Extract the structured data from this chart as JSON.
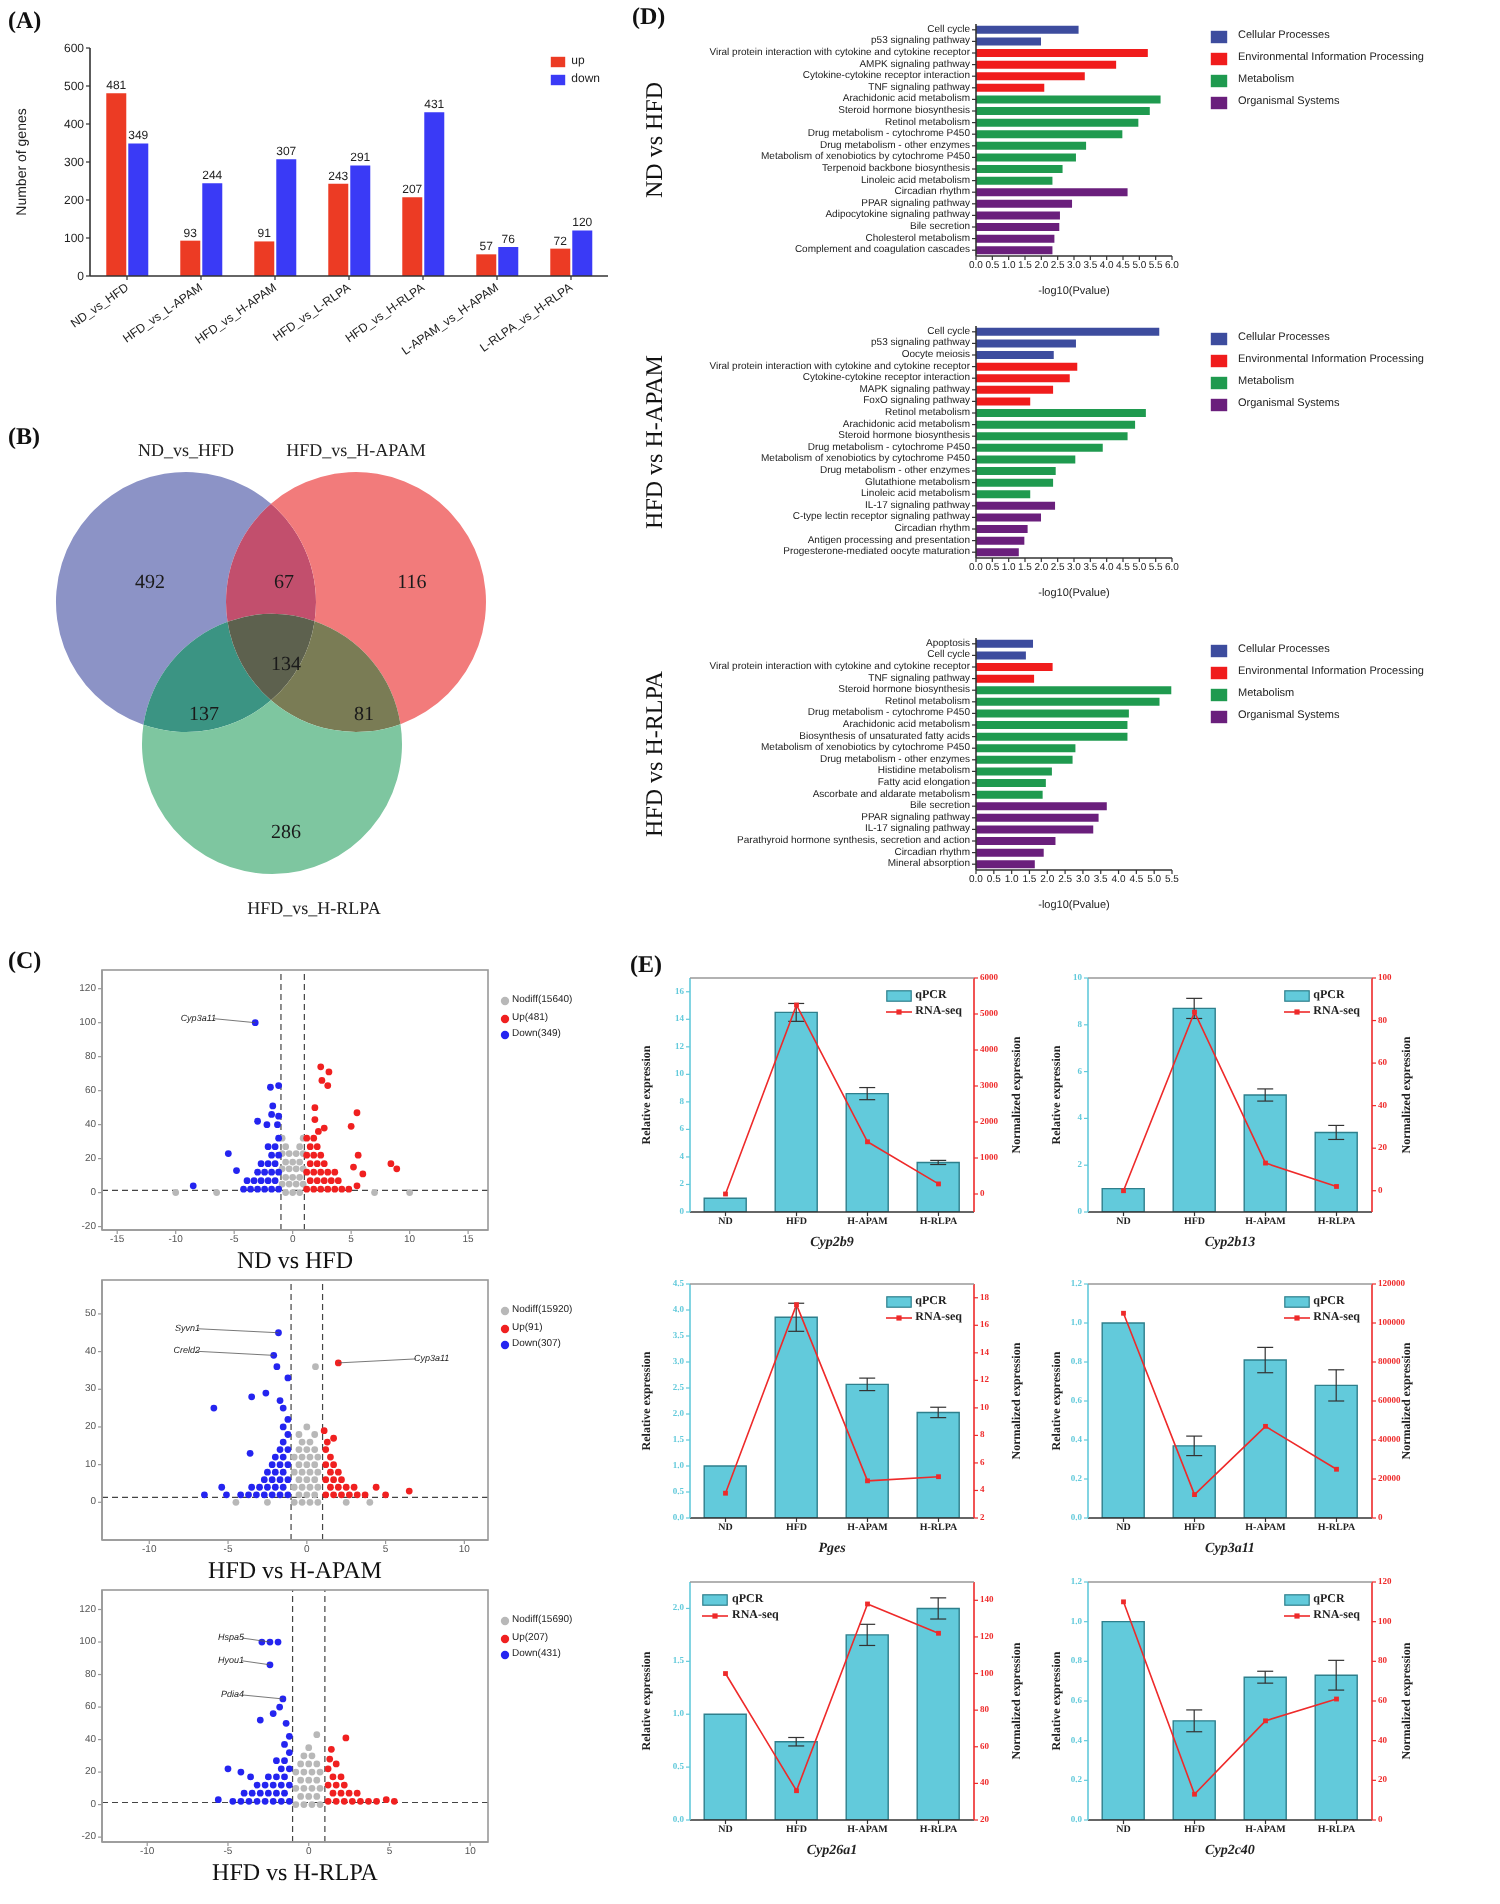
{
  "chart_data": [
    {
      "type": "bar",
      "annotations": [
        "(A)"
      ],
      "ylabel": "Number of genes",
      "categories": [
        "ND_vs_HFD",
        "HFD_vs_L-APAM",
        "HFD_vs_H-APAM",
        "HFD_vs_L-RLPA",
        "HFD_vs_H-RLPA",
        "L-APAM_vs_H-APAM",
        "L-RLPA_vs_H-RLPA"
      ],
      "series": [
        {
          "name": "up",
          "color": "#ec3b24",
          "values": [
            481,
            93,
            91,
            243,
            207,
            57,
            72
          ]
        },
        {
          "name": "down",
          "color": "#3a3af6",
          "values": [
            349,
            244,
            307,
            291,
            431,
            76,
            120
          ]
        }
      ],
      "ylim": [
        0,
        600
      ],
      "yticks": [
        0,
        100,
        200,
        300,
        400,
        500,
        600
      ],
      "data_labels": true,
      "legend": "top right"
    },
    {
      "type": "other",
      "annotations": [
        "(B)",
        "ND_vs_HFD",
        "HFD_vs_H-APAM",
        "HFD_vs_H-RLPA",
        "492",
        "67",
        "116",
        "137",
        "134",
        "81",
        "286"
      ]
    },
    {
      "type": "scatter",
      "annotations": [
        "(C)",
        {
          "text": "Cyp3a11",
          "x": -3.2,
          "y": 100
        }
      ],
      "title": "ND vs HFD",
      "marker": "circle",
      "legend": "right",
      "xlim": [
        -16.3,
        16.7
      ],
      "xticks": [
        -15,
        -10,
        -5,
        0,
        5,
        10,
        15
      ],
      "ylim": [
        -22,
        131
      ],
      "yticks": [
        -20,
        0,
        20,
        40,
        60,
        80,
        100,
        120
      ],
      "ref_lines": [
        {
          "axis": "x",
          "value": -1,
          "line_style": "dashed"
        },
        {
          "axis": "x",
          "value": 1,
          "line_style": "dashed"
        },
        {
          "axis": "y",
          "value": 1.3,
          "line_style": "dashed"
        }
      ],
      "series": [
        {
          "name": "Nodiff(15640)",
          "color": "#b8b8b8",
          "x": [
            -0.6,
            0,
            0.6,
            -0.9,
            -0.3,
            0.3,
            0.9,
            -0.6,
            0,
            0.6,
            -0.9,
            -0.3,
            0.3,
            0.9,
            -0.6,
            0,
            0.6,
            -0.9,
            -0.3,
            0.3,
            0.9,
            -0.6,
            0.6,
            -0.9,
            0.9,
            -6.5,
            7.0,
            -10,
            10
          ],
          "values": [
            0,
            0,
            0,
            5,
            5,
            5,
            5,
            9,
            9,
            9,
            14,
            14,
            14,
            14,
            18,
            18,
            18,
            23,
            23,
            23,
            23,
            27,
            27,
            32,
            32,
            0,
            0,
            0,
            0
          ]
        },
        {
          "name": "Up(481)",
          "color": "#f02020",
          "x": [
            1.2,
            1.8,
            2.4,
            3.0,
            3.6,
            4.2,
            4.8,
            1.5,
            2.1,
            2.7,
            3.3,
            3.9,
            1.2,
            1.8,
            2.4,
            3.0,
            3.6,
            1.5,
            2.1,
            2.7,
            1.2,
            1.8,
            2.4,
            1.5,
            2.1,
            1.2,
            1.8,
            8.4,
            8.9,
            5.6,
            6.0,
            5.2,
            5.5,
            2.4,
            3.1,
            2.5,
            3.0,
            1.9,
            1.9,
            5.5,
            5.0,
            2.7,
            2.2
          ],
          "values": [
            2,
            2,
            2,
            2,
            2,
            2,
            2,
            7,
            7,
            7,
            7,
            7,
            12,
            12,
            12,
            12,
            12,
            17,
            17,
            17,
            22,
            22,
            22,
            27,
            27,
            32,
            32,
            17,
            14,
            22,
            11,
            15,
            4,
            74,
            71,
            66,
            63,
            50,
            43,
            47,
            39,
            38,
            36
          ]
        },
        {
          "name": "Down(349)",
          "color": "#2424f0",
          "x": [
            -1.2,
            -1.8,
            -2.4,
            -3.0,
            -3.6,
            -4.2,
            -1.5,
            -2.1,
            -2.7,
            -3.3,
            -3.9,
            -1.2,
            -1.8,
            -2.4,
            -3.0,
            -1.5,
            -2.1,
            -2.7,
            -1.2,
            -1.8,
            -1.5,
            -2.1,
            -1.2,
            -8.5,
            -5.5,
            -4.8,
            -3.2,
            -1.9,
            -1.2,
            -1.7,
            -1.8,
            -1.2,
            -3.0,
            -1.3,
            -2.2
          ],
          "values": [
            2,
            2,
            2,
            2,
            2,
            2,
            7,
            7,
            7,
            7,
            7,
            12,
            12,
            12,
            12,
            17,
            17,
            17,
            22,
            22,
            27,
            27,
            32,
            4,
            23,
            13,
            100,
            62,
            63,
            51,
            46,
            45,
            42,
            40,
            40
          ]
        }
      ]
    },
    {
      "type": "scatter",
      "annotations": [
        {
          "text": "Syvn1",
          "x": -1.8,
          "y": 45
        },
        {
          "text": "Creld2",
          "x": -2.1,
          "y": 39
        },
        {
          "text": "Cyp3a11",
          "x": 2.0,
          "y": 37
        }
      ],
      "title": "HFD vs H-APAM",
      "marker": "circle",
      "legend": "right",
      "xlim": [
        -13,
        11.5
      ],
      "xticks": [
        -10,
        -5,
        0,
        5,
        10
      ],
      "ylim": [
        -10,
        59
      ],
      "yticks": [
        0,
        10,
        20,
        30,
        40,
        50
      ],
      "ref_lines": [
        {
          "axis": "x",
          "value": -1,
          "line_style": "dashed"
        },
        {
          "axis": "x",
          "value": 1,
          "line_style": "dashed"
        },
        {
          "axis": "y",
          "value": 1.3,
          "line_style": "dashed"
        }
      ],
      "series": [
        {
          "name": "Nodiff(15920)",
          "color": "#b8b8b8",
          "x": [
            -0.8,
            -0.3,
            0.2,
            0.7,
            -0.5,
            0,
            0.5,
            -0.8,
            -0.3,
            0.2,
            0.7,
            -0.5,
            0,
            0.5,
            -0.8,
            -0.3,
            0.2,
            0.7,
            -0.5,
            0,
            0.5,
            -0.8,
            -0.3,
            0.2,
            0.7,
            -0.5,
            0,
            0.5,
            -0.3,
            0.2,
            -0.5,
            0.5,
            0,
            0.55,
            -2.5,
            2.5,
            -4.5,
            4.0
          ],
          "values": [
            0,
            0,
            0,
            0,
            2,
            2,
            2,
            4,
            4,
            4,
            4,
            6,
            6,
            6,
            8,
            8,
            8,
            8,
            10,
            10,
            10,
            12,
            12,
            12,
            12,
            14,
            14,
            14,
            16,
            16,
            18,
            18,
            20,
            36,
            0,
            0,
            0,
            0
          ]
        },
        {
          "name": "Up(91)",
          "color": "#f02020",
          "x": [
            1.2,
            1.7,
            2.2,
            2.7,
            3.2,
            3.7,
            1.5,
            2.0,
            2.5,
            3.0,
            1.2,
            1.7,
            2.2,
            1.5,
            2.0,
            1.2,
            1.7,
            1.5,
            1.2,
            1.3,
            1.7,
            1.1,
            2.0,
            4.4,
            5.0,
            6.5
          ],
          "values": [
            2,
            2,
            2,
            2,
            2,
            2,
            4,
            4,
            4,
            4,
            6,
            6,
            6,
            8,
            8,
            10,
            10,
            12,
            14,
            16,
            17,
            19,
            37,
            4,
            2,
            3
          ]
        },
        {
          "name": "Down(307)",
          "color": "#2424f0",
          "x": [
            -1.2,
            -1.7,
            -2.2,
            -2.7,
            -3.2,
            -3.7,
            -4.2,
            -1.5,
            -2.0,
            -2.5,
            -3.0,
            -3.5,
            -1.2,
            -1.7,
            -2.2,
            -2.7,
            -1.5,
            -2.0,
            -2.5,
            -1.2,
            -1.7,
            -2.2,
            -1.5,
            -2.0,
            -1.2,
            -1.7,
            -1.5,
            -1.2,
            -1.5,
            -1.2,
            -3.6,
            -5.4,
            -5.1,
            -6.5,
            -5.9,
            -1.8,
            -2.1,
            -1.9,
            -1.2,
            -2.6,
            -3.5,
            -1.7,
            -1.5
          ],
          "values": [
            2,
            2,
            2,
            2,
            2,
            2,
            2,
            4,
            4,
            4,
            4,
            4,
            6,
            6,
            6,
            6,
            8,
            8,
            8,
            10,
            10,
            10,
            12,
            12,
            14,
            14,
            16,
            18,
            20,
            22,
            13,
            4,
            2,
            2,
            25,
            45,
            39,
            36,
            33,
            29,
            28,
            27,
            25
          ]
        }
      ]
    },
    {
      "type": "scatter",
      "annotations": [
        {
          "text": "Hspa5",
          "x": -2.4,
          "y": 100
        },
        {
          "text": "Hyou1",
          "x": -2.4,
          "y": 86
        },
        {
          "text": "Pdia4",
          "x": -1.6,
          "y": 65
        }
      ],
      "title": "HFD vs H-RLPA",
      "marker": "circle",
      "legend": "right",
      "xlim": [
        -12.8,
        11.1
      ],
      "xticks": [
        -10,
        -5,
        0,
        5,
        10
      ],
      "ylim": [
        -23,
        132
      ],
      "yticks": [
        -20,
        0,
        20,
        40,
        60,
        80,
        100,
        120
      ],
      "ref_lines": [
        {
          "axis": "x",
          "value": -1,
          "line_style": "dashed"
        },
        {
          "axis": "x",
          "value": 1,
          "line_style": "dashed"
        },
        {
          "axis": "y",
          "value": 1.3,
          "line_style": "dashed"
        }
      ],
      "series": [
        {
          "name": "Nodiff(15690)",
          "color": "#b8b8b8",
          "x": [
            -0.8,
            -0.3,
            0.2,
            0.7,
            -0.5,
            0,
            0.5,
            -0.8,
            -0.3,
            0.2,
            0.7,
            -0.5,
            0,
            0.5,
            -0.8,
            -0.3,
            0.2,
            0.7,
            -0.5,
            0,
            0.5,
            -0.3,
            0.2,
            0,
            0.5
          ],
          "values": [
            0,
            0,
            0,
            0,
            5,
            5,
            5,
            10,
            10,
            10,
            10,
            15,
            15,
            15,
            20,
            20,
            20,
            20,
            25,
            25,
            25,
            30,
            30,
            35,
            43
          ]
        },
        {
          "name": "Up(207)",
          "color": "#f02020",
          "x": [
            1.2,
            1.7,
            2.2,
            2.7,
            3.2,
            3.7,
            4.2,
            1.5,
            2.0,
            2.5,
            3.0,
            1.2,
            1.7,
            2.2,
            1.5,
            2.0,
            1.2,
            2.3,
            1.4,
            1.3,
            1.7,
            4.8,
            5.3
          ],
          "values": [
            2,
            2,
            2,
            2,
            2,
            2,
            2,
            7,
            7,
            7,
            7,
            12,
            12,
            12,
            17,
            17,
            22,
            41,
            34,
            28,
            25,
            3,
            2
          ]
        },
        {
          "name": "Down(431)",
          "color": "#2424f0",
          "x": [
            -1.2,
            -1.7,
            -2.2,
            -2.7,
            -3.2,
            -3.7,
            -4.2,
            -4.7,
            -1.5,
            -2.0,
            -2.5,
            -3.0,
            -3.5,
            -4.0,
            -1.2,
            -1.7,
            -2.2,
            -2.7,
            -3.2,
            -1.5,
            -2.0,
            -2.5,
            -1.2,
            -1.7,
            -1.5,
            -2.0,
            -1.2,
            -1.5,
            -1.2,
            -5.0,
            -4.2,
            -5.6,
            -3.6,
            -2.9,
            -2.4,
            -1.9,
            -2.4,
            -1.6,
            -1.8,
            -2.2,
            -3.0,
            -1.4
          ],
          "values": [
            2,
            2,
            2,
            2,
            2,
            2,
            2,
            2,
            7,
            7,
            7,
            7,
            7,
            7,
            12,
            12,
            12,
            12,
            12,
            17,
            17,
            17,
            22,
            22,
            27,
            27,
            32,
            37,
            42,
            22,
            20,
            3,
            17,
            100,
            100,
            100,
            86,
            65,
            60,
            56,
            52,
            50
          ]
        }
      ]
    },
    {
      "type": "bar",
      "orientation": "horizontal",
      "stacked": true,
      "annotations": [
        "(D)"
      ],
      "ylabel": "ND vs HFD",
      "xlabel": "-log10(Pvalue)",
      "legend": "right",
      "categories": [
        "Cell cycle",
        "p53 signaling pathway",
        "Viral protein interaction with cytokine and cytokine receptor",
        "AMPK signaling pathway",
        "Cytokine-cytokine receptor interaction",
        "TNF signaling pathway",
        "Arachidonic acid metabolism",
        "Steroid hormone biosynthesis",
        "Retinol metabolism",
        "Drug metabolism - cytochrome P450",
        "Drug metabolism - other enzymes",
        "Metabolism of xenobiotics by cytochrome P450",
        "Terpenoid backbone biosynthesis",
        "Linoleic acid metabolism",
        "Circadian rhythm",
        "PPAR signaling pathway",
        "Adipocytokine signaling pathway",
        "Bile secretion",
        "Cholesterol metabolism",
        "Complement and coagulation cascades"
      ],
      "series": [
        {
          "name": "Cellular Processes",
          "color": "#3d4c9e",
          "values": [
            3.14,
            1.99,
            null,
            null,
            null,
            null,
            null,
            null,
            null,
            null,
            null,
            null,
            null,
            null,
            null,
            null,
            null,
            null,
            null,
            null
          ]
        },
        {
          "name": "Environmental Information Processing",
          "color": "#f01c1c",
          "values": [
            null,
            null,
            5.26,
            4.29,
            3.33,
            2.09,
            null,
            null,
            null,
            null,
            null,
            null,
            null,
            null,
            null,
            null,
            null,
            null,
            null,
            null
          ]
        },
        {
          "name": "Metabolism",
          "color": "#1f9a4f",
          "values": [
            null,
            null,
            null,
            null,
            null,
            null,
            5.65,
            5.32,
            4.97,
            4.48,
            3.37,
            3.06,
            2.65,
            2.34,
            null,
            null,
            null,
            null,
            null,
            null
          ]
        },
        {
          "name": "Organismal Systems",
          "color": "#6a1f7c",
          "values": [
            null,
            null,
            null,
            null,
            null,
            null,
            null,
            null,
            null,
            null,
            null,
            null,
            null,
            null,
            4.64,
            2.94,
            2.57,
            2.55,
            2.4,
            2.34
          ]
        }
      ],
      "xlim": [
        0,
        6
      ],
      "xticks": [
        {
          "value": 0,
          "label": "0.0"
        },
        {
          "value": 0.5,
          "label": "0.5"
        },
        {
          "value": 1,
          "label": "1.0"
        },
        {
          "value": 1.5,
          "label": "1.5"
        },
        {
          "value": 2,
          "label": "2.0"
        },
        {
          "value": 2.5,
          "label": "2.5"
        },
        {
          "value": 3,
          "label": "3.0"
        },
        {
          "value": 3.5,
          "label": "3.5"
        },
        {
          "value": 4,
          "label": "4.0"
        },
        {
          "value": 4.5,
          "label": "4.5"
        },
        {
          "value": 5,
          "label": "5.0"
        },
        {
          "value": 5.5,
          "label": "5.5"
        },
        {
          "value": 6,
          "label": "6.0"
        }
      ]
    },
    {
      "type": "bar",
      "orientation": "horizontal",
      "stacked": true,
      "ylabel": "HFD vs H-APAM",
      "xlabel": "-log10(Pvalue)",
      "legend": "right",
      "categories": [
        "Cell cycle",
        "p53 signaling pathway",
        "Oocyte meiosis",
        "Viral protein interaction with cytokine and cytokine receptor",
        "Cytokine-cytokine receptor interaction",
        "MAPK signaling pathway",
        "FoxO signaling pathway",
        "Retinol metabolism",
        "Arachidonic acid metabolism",
        "Steroid hormone biosynthesis",
        "Drug metabolism - cytochrome P450",
        "Metabolism of xenobiotics by cytochrome P450",
        "Drug metabolism - other enzymes",
        "Glutathione metabolism",
        "Linoleic acid metabolism",
        "IL-17 signaling pathway",
        "C-type lectin receptor signaling pathway",
        "Circadian rhythm",
        "Antigen processing and presentation",
        "Progesterone-mediated oocyte maturation"
      ],
      "series": [
        {
          "name": "Cellular Processes",
          "color": "#3d4c9e",
          "values": [
            5.61,
            3.06,
            2.38,
            null,
            null,
            null,
            null,
            null,
            null,
            null,
            null,
            null,
            null,
            null,
            null,
            null,
            null,
            null,
            null,
            null
          ]
        },
        {
          "name": "Environmental Information Processing",
          "color": "#f01c1c",
          "values": [
            null,
            null,
            null,
            3.1,
            2.87,
            2.36,
            1.66,
            null,
            null,
            null,
            null,
            null,
            null,
            null,
            null,
            null,
            null,
            null,
            null,
            null
          ]
        },
        {
          "name": "Metabolism",
          "color": "#1f9a4f",
          "values": [
            null,
            null,
            null,
            null,
            null,
            null,
            null,
            5.2,
            4.87,
            4.64,
            3.88,
            3.04,
            2.44,
            2.36,
            1.66,
            null,
            null,
            null,
            null,
            null
          ]
        },
        {
          "name": "Organismal Systems",
          "color": "#6a1f7c",
          "values": [
            null,
            null,
            null,
            null,
            null,
            null,
            null,
            null,
            null,
            null,
            null,
            null,
            null,
            null,
            null,
            2.42,
            1.99,
            1.58,
            1.48,
            1.31
          ]
        }
      ],
      "xlim": [
        0,
        6
      ],
      "xticks": [
        {
          "value": 0,
          "label": "0.0"
        },
        {
          "value": 0.5,
          "label": "0.5"
        },
        {
          "value": 1,
          "label": "1.0"
        },
        {
          "value": 1.5,
          "label": "1.5"
        },
        {
          "value": 2,
          "label": "2.0"
        },
        {
          "value": 2.5,
          "label": "2.5"
        },
        {
          "value": 3,
          "label": "3.0"
        },
        {
          "value": 3.5,
          "label": "3.5"
        },
        {
          "value": 4,
          "label": "4.0"
        },
        {
          "value": 4.5,
          "label": "4.5"
        },
        {
          "value": 5,
          "label": "5.0"
        },
        {
          "value": 5.5,
          "label": "5.5"
        },
        {
          "value": 6,
          "label": "6.0"
        }
      ]
    },
    {
      "type": "bar",
      "orientation": "horizontal",
      "stacked": true,
      "ylabel": "HFD vs H-RLPA",
      "xlabel": "-log10(Pvalue)",
      "legend": "right",
      "categories": [
        "Apoptosis",
        "Cell cycle",
        "Viral protein interaction with cytokine and cytokine receptor",
        "TNF signaling pathway",
        "Steroid hormone biosynthesis",
        "Retinol metabolism",
        "Drug metabolism - cytochrome P450",
        "Arachidonic acid metabolism",
        "Biosynthesis of unsaturated fatty acids",
        "Metabolism of xenobiotics by cytochrome P450",
        "Drug metabolism - other enzymes",
        "Histidine metabolism",
        "Fatty acid elongation",
        "Ascorbate and aldarate metabolism",
        "Bile secretion",
        "PPAR signaling pathway",
        "IL-17 signaling pathway",
        "Parathyroid hormone synthesis, secretion and action",
        "Circadian rhythm",
        "Mineral absorption"
      ],
      "series": [
        {
          "name": "Cellular Processes",
          "color": "#3d4c9e",
          "values": [
            1.6,
            1.4,
            null,
            null,
            null,
            null,
            null,
            null,
            null,
            null,
            null,
            null,
            null,
            null,
            null,
            null,
            null,
            null,
            null,
            null
          ]
        },
        {
          "name": "Environmental Information Processing",
          "color": "#f01c1c",
          "values": [
            null,
            null,
            2.15,
            1.63,
            null,
            null,
            null,
            null,
            null,
            null,
            null,
            null,
            null,
            null,
            null,
            null,
            null,
            null,
            null,
            null
          ]
        },
        {
          "name": "Metabolism",
          "color": "#1f9a4f",
          "values": [
            null,
            null,
            null,
            null,
            5.48,
            5.15,
            4.29,
            4.25,
            4.25,
            2.79,
            2.71,
            2.13,
            1.96,
            1.87,
            null,
            null,
            null,
            null,
            null,
            null
          ]
        },
        {
          "name": "Organismal Systems",
          "color": "#6a1f7c",
          "values": [
            null,
            null,
            null,
            null,
            null,
            null,
            null,
            null,
            null,
            null,
            null,
            null,
            null,
            null,
            3.67,
            3.44,
            3.29,
            2.23,
            1.9,
            1.65
          ]
        }
      ],
      "xlim": [
        0,
        5.5
      ],
      "xticks": [
        {
          "value": 0,
          "label": "0.0"
        },
        {
          "value": 0.5,
          "label": "0.5"
        },
        {
          "value": 1,
          "label": "1.0"
        },
        {
          "value": 1.5,
          "label": "1.5"
        },
        {
          "value": 2,
          "label": "2.0"
        },
        {
          "value": 2.5,
          "label": "2.5"
        },
        {
          "value": 3,
          "label": "3.0"
        },
        {
          "value": 3.5,
          "label": "3.5"
        },
        {
          "value": 4,
          "label": "4.0"
        },
        {
          "value": 4.5,
          "label": "4.5"
        },
        {
          "value": 5,
          "label": "5.0"
        },
        {
          "value": 5.5,
          "label": "5.5"
        }
      ]
    },
    {
      "type": "bar",
      "annotations": [
        "(E)"
      ],
      "xlabel": "Cyp2b9",
      "ylabel": "Relative expression",
      "y2label": "Normalized expression",
      "legend": "top right",
      "categories": [
        "ND",
        "HFD",
        "H-APAM",
        "H-RLPA"
      ],
      "series": [
        {
          "name": "qPCR",
          "color": "#62cadb",
          "values": [
            1,
            14.5,
            8.6,
            3.6
          ],
          "errors": [
            null,
            0.65,
            0.44,
            0.15
          ]
        },
        {
          "name": "RNA-seq",
          "type": "line",
          "axis": "y2",
          "marker": "square",
          "color": "#ee2a2a",
          "values": [
            0,
            5250,
            1450,
            280
          ]
        }
      ],
      "ylim": [
        0,
        17
      ],
      "yticks": [
        0,
        2,
        4,
        6,
        8,
        10,
        12,
        14,
        16
      ],
      "y2lim": [
        -500,
        6000
      ],
      "y2ticks": [
        0,
        1000,
        2000,
        3000,
        4000,
        5000,
        6000
      ]
    },
    {
      "type": "bar",
      "xlabel": "Cyp2b13",
      "ylabel": "Relative expression",
      "y2label": "Normalized expression",
      "legend": "top right",
      "categories": [
        "ND",
        "HFD",
        "H-APAM",
        "H-RLPA"
      ],
      "series": [
        {
          "name": "qPCR",
          "color": "#62cadb",
          "values": [
            1,
            8.7,
            5.0,
            3.4
          ],
          "errors": [
            null,
            0.43,
            0.26,
            0.3
          ]
        },
        {
          "name": "RNA-seq",
          "type": "line",
          "axis": "y2",
          "marker": "square",
          "color": "#ee2a2a",
          "values": [
            0,
            84,
            13,
            2
          ]
        }
      ],
      "ylim": [
        0,
        10
      ],
      "yticks": [
        0,
        2,
        4,
        6,
        8,
        10
      ],
      "y2lim": [
        -10,
        100
      ],
      "y2ticks": [
        0,
        20,
        40,
        60,
        80,
        100
      ]
    },
    {
      "type": "bar",
      "xlabel": "Pges",
      "ylabel": "Relative expression",
      "y2label": "Normalized expression",
      "legend": "top right",
      "categories": [
        "ND",
        "HFD",
        "H-APAM",
        "H-RLPA"
      ],
      "series": [
        {
          "name": "qPCR",
          "color": "#62cadb",
          "values": [
            1,
            3.86,
            2.57,
            2.03
          ],
          "errors": [
            null,
            0.27,
            0.12,
            0.1
          ]
        },
        {
          "name": "RNA-seq",
          "type": "line",
          "axis": "y2",
          "marker": "square",
          "color": "#ee2a2a",
          "values": [
            3.8,
            17.5,
            4.7,
            5.0
          ]
        }
      ],
      "ylim": [
        0,
        4.5
      ],
      "yticks": [
        {
          "value": 0,
          "label": "0.0"
        },
        {
          "value": 0.5,
          "label": "0.5"
        },
        {
          "value": 1,
          "label": "1.0"
        },
        {
          "value": 1.5,
          "label": "1.5"
        },
        {
          "value": 2,
          "label": "2.0"
        },
        {
          "value": 2.5,
          "label": "2.5"
        },
        {
          "value": 3,
          "label": "3.0"
        },
        {
          "value": 3.5,
          "label": "3.5"
        },
        {
          "value": 4,
          "label": "4.0"
        },
        {
          "value": 4.5,
          "label": "4.5"
        }
      ],
      "y2lim": [
        2,
        19
      ],
      "y2ticks": [
        2,
        4,
        6,
        8,
        10,
        12,
        14,
        16,
        18
      ]
    },
    {
      "type": "bar",
      "xlabel": "Cyp3a11",
      "ylabel": "Relative expression",
      "y2label": "Normalized expression",
      "legend": "top right",
      "categories": [
        "ND",
        "HFD",
        "H-APAM",
        "H-RLPA"
      ],
      "series": [
        {
          "name": "qPCR",
          "color": "#62cadb",
          "values": [
            1,
            0.37,
            0.81,
            0.68
          ],
          "errors": [
            null,
            0.05,
            0.065,
            0.08
          ]
        },
        {
          "name": "RNA-seq",
          "type": "line",
          "axis": "y2",
          "marker": "square",
          "color": "#ee2a2a",
          "values": [
            105000,
            12000,
            47000,
            25000
          ]
        }
      ],
      "ylim": [
        0,
        1.2
      ],
      "yticks": [
        {
          "value": 0,
          "label": "0.0"
        },
        {
          "value": 0.2,
          "label": "0.2"
        },
        {
          "value": 0.4,
          "label": "0.4"
        },
        {
          "value": 0.6,
          "label": "0.6"
        },
        {
          "value": 0.8,
          "label": "0.8"
        },
        {
          "value": 1,
          "label": "1.0"
        },
        {
          "value": 1.2,
          "label": "1.2"
        }
      ],
      "y2lim": [
        0,
        120000
      ],
      "y2ticks": [
        0,
        20000,
        40000,
        60000,
        80000,
        100000,
        120000
      ]
    },
    {
      "type": "bar",
      "xlabel": "Cyp26a1",
      "ylabel": "Relative expression",
      "y2label": "Normalized expression",
      "legend": "top left",
      "categories": [
        "ND",
        "HFD",
        "H-APAM",
        "H-RLPA"
      ],
      "series": [
        {
          "name": "qPCR",
          "color": "#62cadb",
          "values": [
            1,
            0.74,
            1.75,
            2.0
          ],
          "errors": [
            null,
            0.04,
            0.1,
            0.1
          ]
        },
        {
          "name": "RNA-seq",
          "type": "line",
          "axis": "y2",
          "marker": "square",
          "color": "#ee2a2a",
          "values": [
            100,
            36,
            138,
            122
          ]
        }
      ],
      "ylim": [
        0,
        2.25
      ],
      "yticks": [
        {
          "value": 0,
          "label": "0.0"
        },
        {
          "value": 0.5,
          "label": "0.5"
        },
        {
          "value": 1,
          "label": "1.0"
        },
        {
          "value": 1.5,
          "label": "1.5"
        },
        {
          "value": 2,
          "label": "2.0"
        }
      ],
      "y2lim": [
        20,
        150
      ],
      "y2ticks": [
        20,
        40,
        60,
        80,
        100,
        120,
        140
      ]
    },
    {
      "type": "bar",
      "xlabel": "Cyp2c40",
      "ylabel": "Relative expression",
      "y2label": "Normalized expression",
      "legend": "top right",
      "categories": [
        "ND",
        "HFD",
        "H-APAM",
        "H-RLPA"
      ],
      "series": [
        {
          "name": "qPCR",
          "color": "#62cadb",
          "values": [
            1,
            0.5,
            0.72,
            0.73
          ],
          "errors": [
            null,
            0.055,
            0.03,
            0.075
          ]
        },
        {
          "name": "RNA-seq",
          "type": "line",
          "axis": "y2",
          "marker": "square",
          "color": "#ee2a2a",
          "values": [
            110,
            13,
            50,
            61
          ]
        }
      ],
      "ylim": [
        0,
        1.2
      ],
      "yticks": [
        {
          "value": 0,
          "label": "0.0"
        },
        {
          "value": 0.2,
          "label": "0.2"
        },
        {
          "value": 0.4,
          "label": "0.4"
        },
        {
          "value": 0.6,
          "label": "0.6"
        },
        {
          "value": 0.8,
          "label": "0.8"
        },
        {
          "value": 1,
          "label": "1.0"
        },
        {
          "value": 1.2,
          "label": "1.2"
        }
      ],
      "y2lim": [
        0,
        120
      ],
      "y2ticks": [
        0,
        20,
        40,
        60,
        80,
        100,
        120
      ]
    }
  ]
}
